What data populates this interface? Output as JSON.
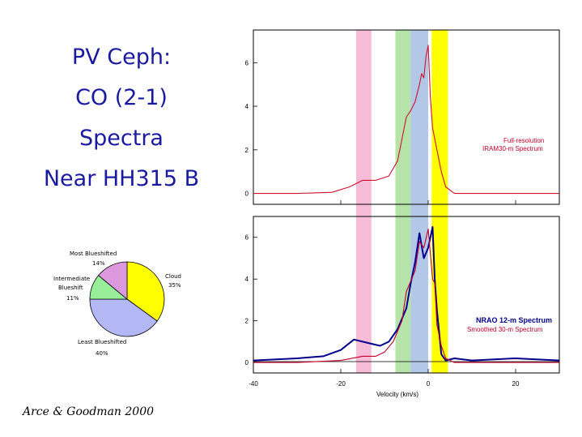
{
  "slide": {
    "title_lines": [
      "PV Ceph:",
      "CO (2-1)",
      "Spectra",
      "Near HH315 B"
    ],
    "credit": "Arce & Goodman 2000"
  },
  "colors": {
    "title": "#1a1aa0",
    "pink_band": "#f7bcd8",
    "green_band": "#b6e3a9",
    "blue_band": "#b3c7e6",
    "yellow_band": "#ffff00",
    "full_res": "#d0102e",
    "nrao": "#00008b",
    "smoothed": "#c0002a"
  },
  "chart_data": [
    {
      "type": "pie",
      "title": "",
      "slices": [
        {
          "label": "Cloud",
          "value": 35,
          "pct_label": "35%",
          "color": "#ffff00"
        },
        {
          "label": "Least Blueshifted",
          "value": 40,
          "pct_label": "40%",
          "color": "#b3b8f5"
        },
        {
          "label": "Intermediate Blueshift",
          "label_lines": [
            "Intermediate",
            "Blueshift"
          ],
          "value": 11,
          "pct_label": "11%",
          "color": "#99ee99"
        },
        {
          "label": "Most Blueshifted",
          "value": 14,
          "pct_label": "14%",
          "color": "#dd99dd"
        }
      ]
    },
    {
      "type": "line",
      "title": "",
      "xlabel": "Velocity (km/s)",
      "xlim": [
        -40,
        30
      ],
      "xticks": [
        -40,
        -20,
        0,
        20
      ],
      "panels": [
        {
          "name": "top",
          "ylim": [
            -0.5,
            7.5
          ],
          "yticks": [
            0,
            2,
            4,
            6
          ],
          "annotations": [
            "Full-resolution",
            "IRAM30-m Spectrum"
          ],
          "series": [
            {
              "name": "Full-resolution IRAM30-m Spectrum",
              "color": "#d0102e",
              "x": [
                -40,
                -30,
                -22,
                -18,
                -15,
                -12,
                -9,
                -7,
                -5,
                -4,
                -3,
                -2,
                -1.5,
                -1,
                -0.5,
                0,
                0.5,
                1,
                2,
                3,
                4,
                6,
                10,
                20,
                30
              ],
              "y": [
                0,
                0,
                0.05,
                0.3,
                0.6,
                0.6,
                0.8,
                1.5,
                3.5,
                3.8,
                4.2,
                5.0,
                5.5,
                5.3,
                6.3,
                6.8,
                4.4,
                3.0,
                2.0,
                1.0,
                0.3,
                0,
                0,
                0,
                0
              ]
            }
          ]
        },
        {
          "name": "bottom",
          "ylim": [
            -0.5,
            7.0
          ],
          "yticks": [
            0,
            2,
            4,
            6
          ],
          "annotations": [
            "NRAO 12-m Spectrum",
            "Smoothed 30-m Spectrum"
          ],
          "series": [
            {
              "name": "NRAO 12-m Spectrum",
              "color": "#00008b",
              "x": [
                -40,
                -30,
                -24,
                -20,
                -17,
                -15,
                -13,
                -11,
                -9,
                -7,
                -5,
                -4,
                -3,
                -2,
                -1,
                0,
                1,
                1.5,
                2,
                3,
                4,
                6,
                10,
                20,
                30
              ],
              "y": [
                0.1,
                0.2,
                0.3,
                0.6,
                1.1,
                1.0,
                0.9,
                0.8,
                1.0,
                1.6,
                2.6,
                3.8,
                4.8,
                6.2,
                5.0,
                5.5,
                6.5,
                4.0,
                2.5,
                0.4,
                0.1,
                0.2,
                0.1,
                0.2,
                0.1
              ]
            },
            {
              "name": "Smoothed 30-m Spectrum",
              "color": "#c0002a",
              "x": [
                -40,
                -30,
                -20,
                -15,
                -12,
                -10,
                -8,
                -6,
                -5,
                -4,
                -3,
                -2,
                -1,
                0,
                1,
                1.5,
                2,
                3,
                4,
                6,
                10,
                20,
                30
              ],
              "y": [
                0,
                0,
                0.1,
                0.3,
                0.3,
                0.5,
                1.0,
                2.0,
                3.4,
                3.9,
                4.4,
                5.8,
                5.5,
                6.4,
                4.0,
                3.8,
                1.8,
                0.8,
                0.2,
                0,
                0,
                0,
                0
              ]
            }
          ]
        }
      ],
      "bands": [
        {
          "x": [
            -16.5,
            -13
          ],
          "color": "#f7bcd8"
        },
        {
          "x": [
            -7.5,
            -4
          ],
          "color": "#b6e3a9"
        },
        {
          "x": [
            -4,
            0
          ],
          "color": "#b3c7e6"
        },
        {
          "x": [
            0.8,
            4.5
          ],
          "color": "#ffff00"
        }
      ]
    }
  ]
}
